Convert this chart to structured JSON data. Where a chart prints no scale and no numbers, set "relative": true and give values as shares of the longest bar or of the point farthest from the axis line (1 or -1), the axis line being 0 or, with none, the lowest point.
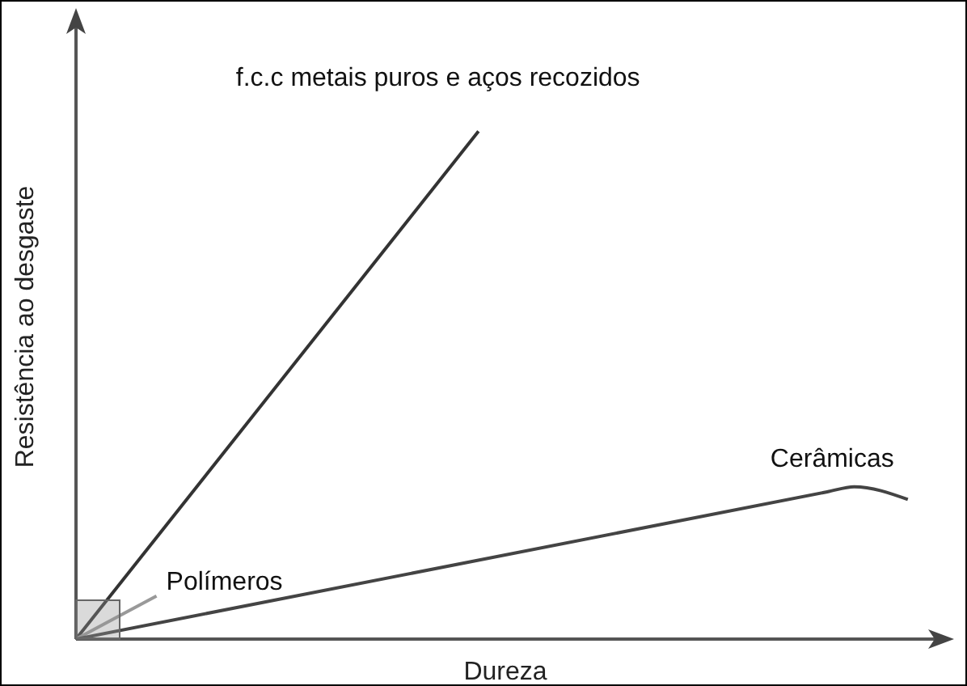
{
  "chart_data": {
    "type": "line",
    "relative": true,
    "xlabel": "Dureza",
    "ylabel": "Resistência ao desgaste",
    "marker": "none",
    "categories": [
      null,
      null,
      null,
      null,
      null,
      null,
      null,
      null,
      null,
      null,
      null,
      null,
      null,
      null,
      null,
      null,
      null,
      null,
      null,
      null,
      null,
      null,
      null,
      null,
      null,
      null,
      null,
      null,
      null,
      null,
      null,
      null
    ],
    "series": [
      {
        "name": "f.c.c metais puros e aços recozidos",
        "color": "#333333",
        "values": [
          0,
          null,
          null,
          null,
          null,
          null,
          null,
          null,
          null,
          null,
          null,
          null,
          null,
          null,
          null,
          1,
          null,
          null,
          null,
          null,
          null,
          null,
          null,
          null,
          null,
          null,
          null,
          null,
          null,
          null,
          null,
          null
        ]
      },
      {
        "name": "Polímeros",
        "color": "#999999",
        "values": [
          0,
          null,
          null,
          0.085,
          null,
          null,
          null,
          null,
          null,
          null,
          null,
          null,
          null,
          null,
          null,
          null,
          null,
          null,
          null,
          null,
          null,
          null,
          null,
          null,
          null,
          null,
          null,
          null,
          null,
          null,
          null,
          null
        ]
      },
      {
        "name": "Cerâmicas",
        "color": "#444444",
        "values": [
          0,
          null,
          null,
          null,
          null,
          null,
          null,
          null,
          null,
          null,
          null,
          null,
          null,
          null,
          null,
          null,
          null,
          null,
          null,
          null,
          null,
          null,
          null,
          null,
          null,
          null,
          null,
          null,
          0.29,
          0.3,
          null,
          0.275
        ]
      }
    ]
  }
}
